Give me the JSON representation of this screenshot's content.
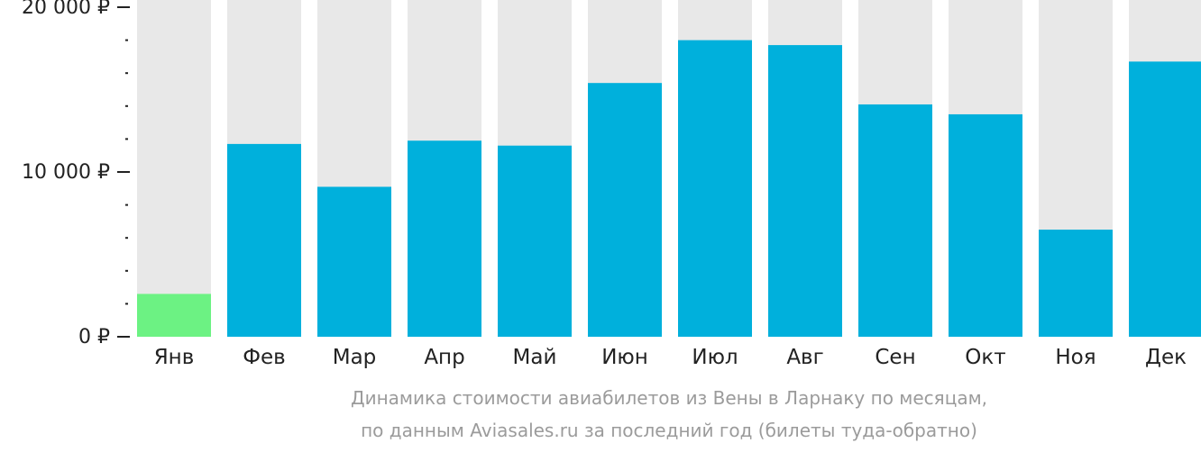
{
  "chart_data": {
    "type": "bar",
    "categories": [
      "Янв",
      "Фев",
      "Мар",
      "Апр",
      "Май",
      "Июн",
      "Июл",
      "Авг",
      "Сен",
      "Окт",
      "Ноя",
      "Дек"
    ],
    "values": [
      2600,
      11700,
      9100,
      11900,
      11600,
      15400,
      18000,
      17700,
      14100,
      13500,
      6500,
      16700
    ],
    "ylim": [
      0,
      20000
    ],
    "yticks": [
      {
        "value": 0,
        "label": "0 ₽"
      },
      {
        "value": 10000,
        "label": "10 000 ₽"
      },
      {
        "value": 20000,
        "label": "20 000 ₽"
      }
    ],
    "minor_tick_step": 2000,
    "highlight_index": 0,
    "colors": {
      "bar": "#00b0dc",
      "highlight": "#6cf283",
      "track": "#e8e8e8",
      "axis_text": "#222222"
    },
    "legend": "none",
    "grid": false
  },
  "caption": {
    "line1": "Динамика стоимости авиабилетов из Вены в Ларнаку по месяцам,",
    "line2": "по данным Aviasales.ru за последний год (билеты туда-обратно)"
  }
}
